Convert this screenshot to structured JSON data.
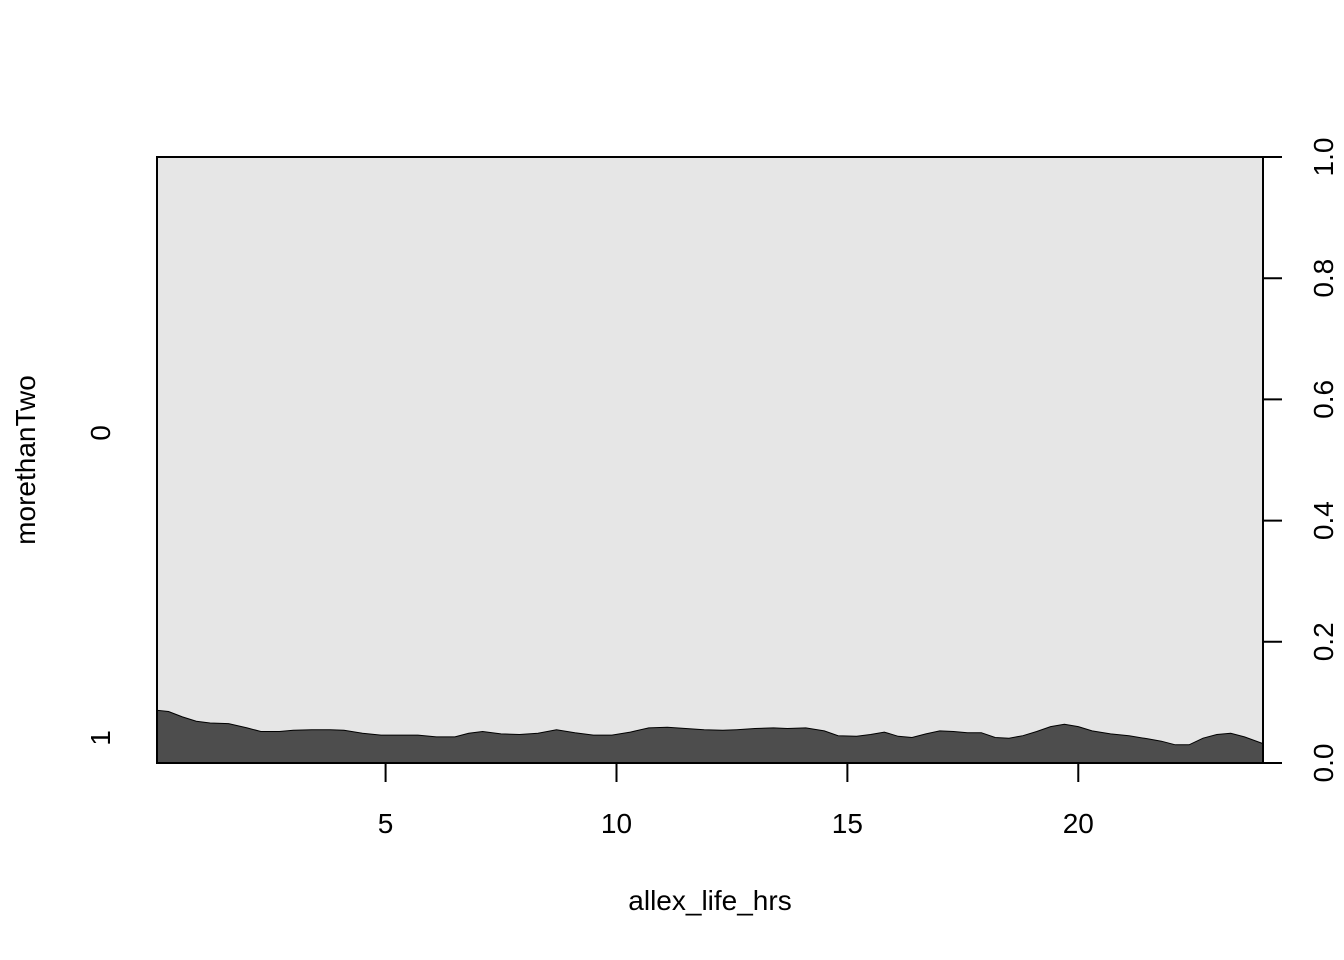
{
  "chart_data": {
    "type": "area",
    "subtype": "conditional-density",
    "xlabel": "allex_life_hrs",
    "ylabel": "morethanTwo",
    "xlim": [
      0.05,
      24
    ],
    "ylim": [
      0,
      1
    ],
    "x_ticks": [
      "5",
      "10",
      "15",
      "20"
    ],
    "y_left_labels": [
      "1",
      "0"
    ],
    "y_right_ticks": [
      "0.0",
      "0.2",
      "0.4",
      "0.6",
      "0.8",
      "1.0"
    ],
    "grid": false,
    "legend": "none",
    "series": [
      {
        "name": "1",
        "color": "#4d4d4d",
        "x": [
          0.05,
          0.3,
          0.6,
          0.9,
          1.2,
          1.6,
          2.0,
          2.3,
          2.7,
          3.0,
          3.4,
          3.8,
          4.1,
          4.5,
          4.9,
          5.3,
          5.7,
          6.1,
          6.5,
          6.8,
          7.1,
          7.5,
          7.9,
          8.3,
          8.7,
          9.1,
          9.5,
          9.9,
          10.3,
          10.7,
          11.1,
          11.5,
          11.9,
          12.3,
          12.6,
          13.0,
          13.4,
          13.7,
          14.1,
          14.5,
          14.8,
          15.2,
          15.5,
          15.8,
          16.1,
          16.4,
          16.7,
          17.0,
          17.3,
          17.6,
          17.9,
          18.2,
          18.5,
          18.8,
          19.1,
          19.4,
          19.7,
          20.0,
          20.3,
          20.7,
          21.1,
          21.5,
          21.8,
          22.1,
          22.4,
          22.7,
          23.0,
          23.3,
          23.6,
          24.0
        ],
        "values": [
          0.087,
          0.085,
          0.076,
          0.069,
          0.066,
          0.065,
          0.058,
          0.052,
          0.052,
          0.054,
          0.055,
          0.055,
          0.054,
          0.049,
          0.046,
          0.046,
          0.046,
          0.043,
          0.043,
          0.049,
          0.052,
          0.048,
          0.047,
          0.049,
          0.055,
          0.05,
          0.046,
          0.046,
          0.051,
          0.058,
          0.059,
          0.057,
          0.055,
          0.054,
          0.055,
          0.057,
          0.058,
          0.057,
          0.058,
          0.053,
          0.045,
          0.044,
          0.047,
          0.051,
          0.044,
          0.042,
          0.048,
          0.053,
          0.052,
          0.05,
          0.05,
          0.042,
          0.041,
          0.045,
          0.052,
          0.06,
          0.064,
          0.06,
          0.053,
          0.048,
          0.045,
          0.04,
          0.036,
          0.03,
          0.03,
          0.041,
          0.047,
          0.049,
          0.043,
          0.032
        ]
      },
      {
        "name": "0",
        "color": "#e6e6e6"
      }
    ]
  }
}
